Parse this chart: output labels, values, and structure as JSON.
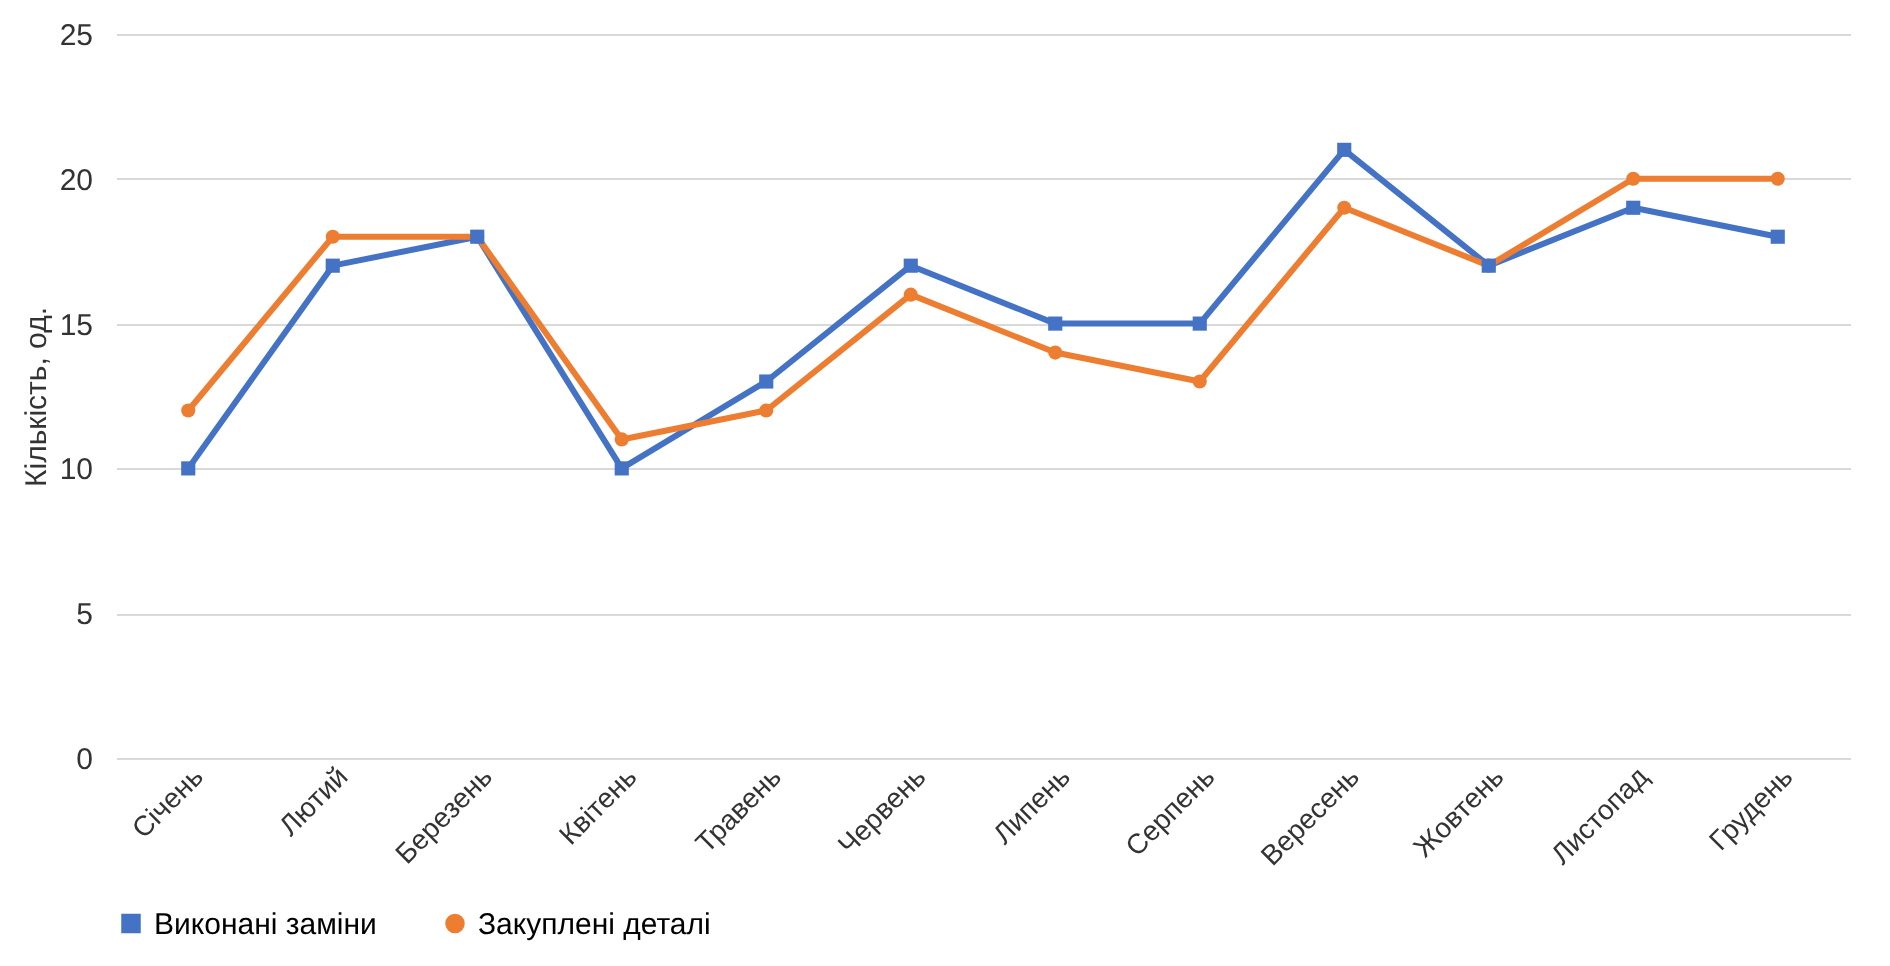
{
  "chart_data": {
    "type": "line",
    "ylabel": "Кількість, од.",
    "categories": [
      "Січень",
      "Лютий",
      "Березень",
      "Квітень",
      "Травень",
      "Червень",
      "Липень",
      "Серпень",
      "Вересень",
      "Жовтень",
      "Листопад",
      "Грудень"
    ],
    "series": [
      {
        "name": "Виконані заміни",
        "color": "#4472c4",
        "marker": "square",
        "values": [
          10,
          17,
          18,
          10,
          13,
          17,
          15,
          15,
          21,
          17,
          19,
          18
        ]
      },
      {
        "name": "Закуплені деталі",
        "color": "#ed7d31",
        "marker": "circle",
        "values": [
          12,
          18,
          18,
          11,
          12,
          16,
          14,
          13,
          19,
          17,
          20,
          20
        ]
      }
    ],
    "ylim": [
      0,
      25
    ],
    "yticks": [
      0,
      5,
      10,
      15,
      20,
      25
    ],
    "grid": "y",
    "legend": "bottom",
    "line_style": "solid"
  }
}
